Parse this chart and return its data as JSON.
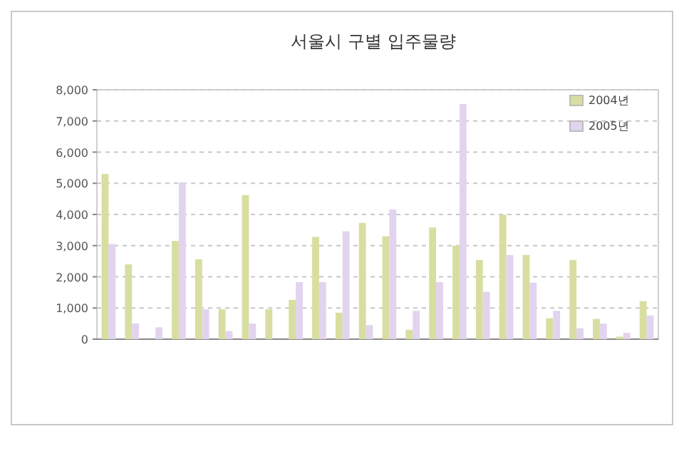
{
  "chart_data": {
    "type": "bar",
    "title": "서울시 구별 입주물량",
    "categories": [
      null,
      null,
      null,
      null,
      null,
      null,
      null,
      null,
      null,
      null,
      null,
      null,
      null,
      null,
      null,
      null,
      null,
      null,
      null,
      null,
      null,
      null,
      null,
      null
    ],
    "series": [
      {
        "name": "2004년",
        "color": "#d8dea0",
        "values": [
          5300,
          2400,
          0,
          3150,
          2560,
          960,
          4620,
          960,
          1260,
          3280,
          850,
          3730,
          3300,
          300,
          3580,
          3000,
          2540,
          3990,
          2700,
          670,
          2540,
          650,
          80,
          1220
        ]
      },
      {
        "name": "2005년",
        "color": "#e2d4ee",
        "values": [
          3050,
          500,
          380,
          5030,
          960,
          260,
          500,
          0,
          1830,
          1830,
          3460,
          450,
          4160,
          910,
          1830,
          7540,
          1520,
          2700,
          1810,
          910,
          350,
          500,
          200,
          760
        ]
      }
    ],
    "ylim": [
      0,
      8000
    ],
    "yticks": [
      0,
      {
        "value": 1000,
        "label": "1,000"
      },
      {
        "value": 2000,
        "label": "2,000"
      },
      {
        "value": 3000,
        "label": "3,000"
      },
      {
        "value": 4000,
        "label": "4,000"
      },
      {
        "value": 5000,
        "label": "5,000"
      },
      {
        "value": 6000,
        "label": "6,000"
      },
      {
        "value": 7000,
        "label": "7,000"
      },
      {
        "value": 8000,
        "label": "8,000"
      }
    ],
    "grid": "y",
    "legend": "top right"
  }
}
